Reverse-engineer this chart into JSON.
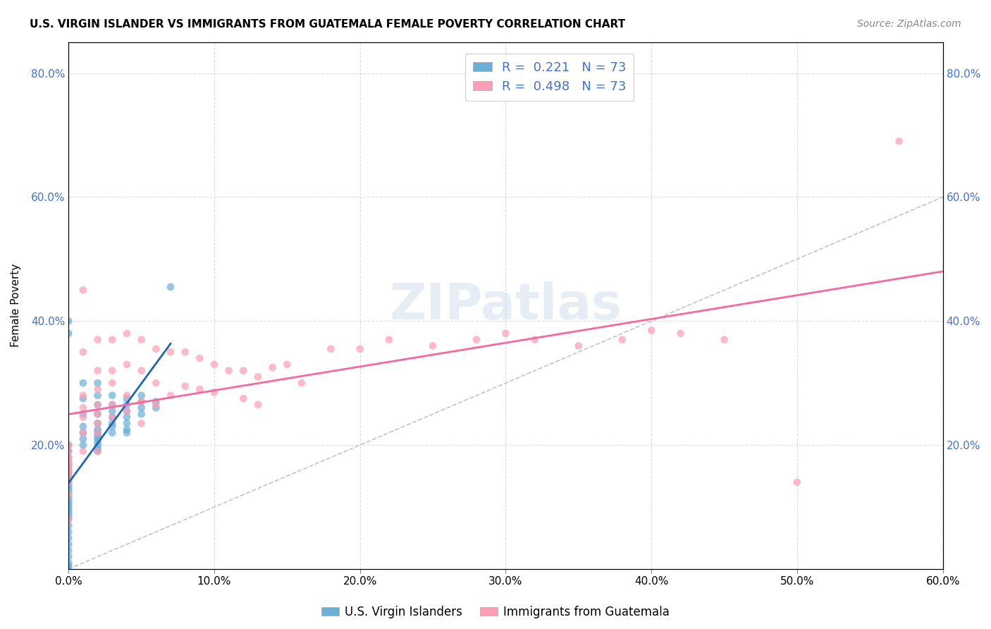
{
  "title": "U.S. VIRGIN ISLANDER VS IMMIGRANTS FROM GUATEMALA FEMALE POVERTY CORRELATION CHART",
  "source": "Source: ZipAtlas.com",
  "ylabel": "Female Poverty",
  "xlabel": "",
  "xlim": [
    0.0,
    0.6
  ],
  "ylim": [
    0.0,
    0.85
  ],
  "xtick_labels": [
    "0.0%",
    "10.0%",
    "20.0%",
    "30.0%",
    "40.0%",
    "50.0%",
    "60.0%"
  ],
  "xtick_values": [
    0.0,
    0.1,
    0.2,
    0.3,
    0.4,
    0.5,
    0.6
  ],
  "ytick_labels": [
    "20.0%",
    "40.0%",
    "60.0%",
    "80.0%"
  ],
  "ytick_values": [
    0.2,
    0.4,
    0.6,
    0.8
  ],
  "right_ytick_labels": [
    "20.0%",
    "40.0%",
    "60.0%",
    "80.0%"
  ],
  "right_ytick_values": [
    0.2,
    0.4,
    0.6,
    0.8
  ],
  "legend_r1": "R =  0.221   N = 73",
  "legend_r2": "R =  0.498   N = 73",
  "blue_color": "#6baed6",
  "pink_color": "#fa9fb5",
  "blue_line_color": "#2166ac",
  "pink_line_color": "#f768a1",
  "watermark": "ZIPatlas",
  "blue_scatter_x": [
    0.0,
    0.0,
    0.0,
    0.0,
    0.0,
    0.0,
    0.0,
    0.0,
    0.0,
    0.0,
    0.0,
    0.0,
    0.0,
    0.0,
    0.0,
    0.0,
    0.0,
    0.0,
    0.0,
    0.0,
    0.0,
    0.0,
    0.0,
    0.0,
    0.0,
    0.0,
    0.0,
    0.0,
    0.0,
    0.0,
    0.0,
    0.0,
    0.01,
    0.01,
    0.01,
    0.01,
    0.01,
    0.01,
    0.01,
    0.02,
    0.02,
    0.02,
    0.02,
    0.02,
    0.02,
    0.02,
    0.02,
    0.02,
    0.02,
    0.02,
    0.02,
    0.02,
    0.03,
    0.03,
    0.03,
    0.03,
    0.03,
    0.03,
    0.03,
    0.04,
    0.04,
    0.04,
    0.04,
    0.04,
    0.04,
    0.04,
    0.05,
    0.05,
    0.05,
    0.05,
    0.06,
    0.06,
    0.07
  ],
  "blue_scatter_y": [
    0.2,
    0.19,
    0.18,
    0.17,
    0.16,
    0.155,
    0.15,
    0.145,
    0.14,
    0.135,
    0.13,
    0.125,
    0.12,
    0.115,
    0.11,
    0.105,
    0.1,
    0.095,
    0.09,
    0.085,
    0.08,
    0.07,
    0.06,
    0.05,
    0.04,
    0.03,
    0.02,
    0.01,
    0.005,
    0.0,
    0.4,
    0.38,
    0.3,
    0.275,
    0.25,
    0.23,
    0.22,
    0.21,
    0.2,
    0.3,
    0.28,
    0.265,
    0.25,
    0.235,
    0.225,
    0.22,
    0.215,
    0.21,
    0.205,
    0.2,
    0.195,
    0.19,
    0.28,
    0.265,
    0.255,
    0.245,
    0.235,
    0.23,
    0.22,
    0.275,
    0.265,
    0.255,
    0.245,
    0.235,
    0.225,
    0.22,
    0.28,
    0.27,
    0.26,
    0.25,
    0.27,
    0.26,
    0.455
  ],
  "pink_scatter_x": [
    0.0,
    0.0,
    0.0,
    0.0,
    0.0,
    0.0,
    0.0,
    0.0,
    0.0,
    0.0,
    0.0,
    0.0,
    0.01,
    0.01,
    0.01,
    0.01,
    0.01,
    0.01,
    0.01,
    0.02,
    0.02,
    0.02,
    0.02,
    0.02,
    0.02,
    0.02,
    0.02,
    0.03,
    0.03,
    0.03,
    0.03,
    0.03,
    0.04,
    0.04,
    0.04,
    0.04,
    0.05,
    0.05,
    0.05,
    0.05,
    0.06,
    0.06,
    0.06,
    0.07,
    0.07,
    0.08,
    0.08,
    0.09,
    0.09,
    0.1,
    0.1,
    0.11,
    0.12,
    0.12,
    0.13,
    0.13,
    0.14,
    0.15,
    0.16,
    0.18,
    0.2,
    0.22,
    0.25,
    0.28,
    0.3,
    0.32,
    0.35,
    0.38,
    0.4,
    0.42,
    0.45,
    0.5,
    0.57
  ],
  "pink_scatter_y": [
    0.2,
    0.19,
    0.18,
    0.175,
    0.17,
    0.165,
    0.16,
    0.155,
    0.15,
    0.14,
    0.12,
    0.08,
    0.45,
    0.35,
    0.28,
    0.26,
    0.245,
    0.22,
    0.19,
    0.37,
    0.32,
    0.29,
    0.265,
    0.25,
    0.235,
    0.22,
    0.19,
    0.37,
    0.32,
    0.3,
    0.265,
    0.245,
    0.38,
    0.33,
    0.28,
    0.255,
    0.37,
    0.32,
    0.27,
    0.235,
    0.355,
    0.3,
    0.265,
    0.35,
    0.28,
    0.35,
    0.295,
    0.34,
    0.29,
    0.33,
    0.285,
    0.32,
    0.32,
    0.275,
    0.31,
    0.265,
    0.325,
    0.33,
    0.3,
    0.355,
    0.355,
    0.37,
    0.36,
    0.37,
    0.38,
    0.37,
    0.36,
    0.37,
    0.385,
    0.38,
    0.37,
    0.14,
    0.69
  ]
}
